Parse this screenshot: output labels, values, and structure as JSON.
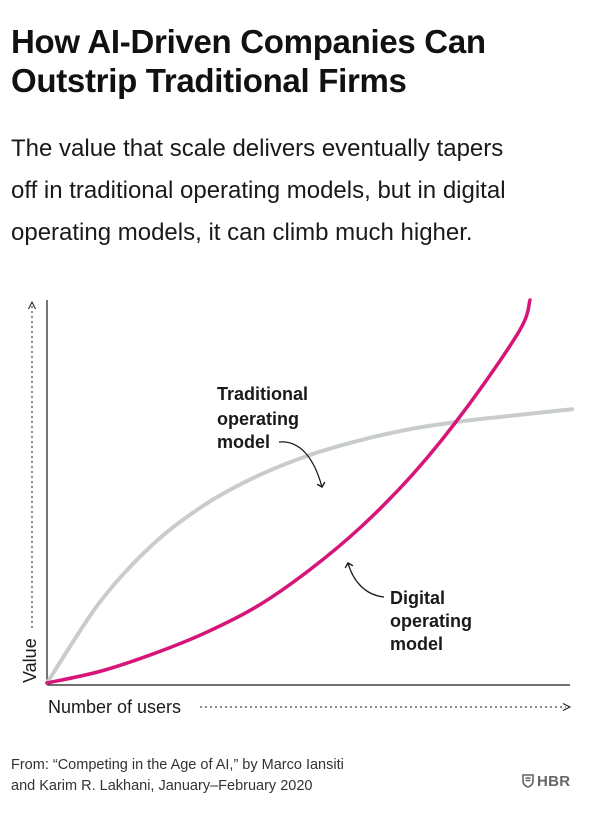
{
  "title_lines": [
    "How AI-Driven Companies Can",
    "Outstrip Traditional Firms"
  ],
  "subtitle_lines": [
    "The value that scale delivers eventually tapers",
    "off in traditional operating models, but in digital",
    "operating models, it can climb much higher."
  ],
  "source_lines": [
    "From: “Competing in the Age of AI,” by Marco Iansiti",
    "and Karim R. Lakhani, January–February 2020"
  ],
  "logo": {
    "text": "HBR",
    "icon": "shield-icon"
  },
  "chart_data": {
    "type": "line",
    "xlabel": "Number of users",
    "ylabel": "Value",
    "xlim": [
      0,
      100
    ],
    "ylim": [
      0,
      100
    ],
    "grid": false,
    "series": [
      {
        "name": "Traditional operating model",
        "color": "#c9ccce",
        "x": [
          0,
          10,
          20,
          30,
          40,
          50,
          60,
          70,
          80,
          90,
          100
        ],
        "values": [
          0,
          21,
          36,
          46.5,
          54,
          59.5,
          63.5,
          66.5,
          68.5,
          70,
          71.5
        ]
      },
      {
        "name": "Digital operating model",
        "color": "#d6147a",
        "x": [
          0,
          10,
          20,
          30,
          40,
          50,
          60,
          70,
          80,
          90,
          92
        ],
        "values": [
          0,
          3,
          7.5,
          13,
          20,
          29.5,
          41,
          55,
          72,
          92,
          100
        ]
      }
    ],
    "annotations": [
      {
        "series": 0,
        "lines": [
          "Traditional",
          "operating",
          "model"
        ]
      },
      {
        "series": 1,
        "lines": [
          "Digital",
          "operating",
          "model"
        ]
      }
    ]
  }
}
